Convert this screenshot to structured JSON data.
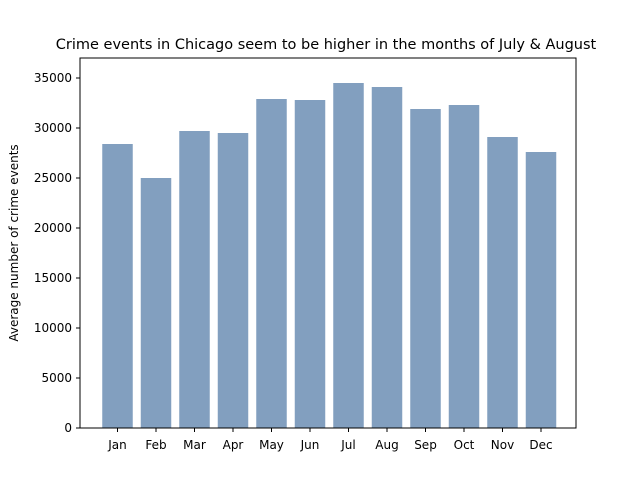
{
  "chart_data": {
    "type": "bar",
    "title": "Crime events in Chicago seem to be higher in the months of July & August",
    "xlabel": "",
    "ylabel": "Average number of crime events",
    "categories": [
      "Jan",
      "Feb",
      "Mar",
      "Apr",
      "May",
      "Jun",
      "Jul",
      "Aug",
      "Sep",
      "Oct",
      "Nov",
      "Dec"
    ],
    "values": [
      28400,
      25000,
      29700,
      29500,
      32900,
      32800,
      34500,
      34100,
      31900,
      32300,
      29100,
      27600
    ],
    "ylim": [
      0,
      37000
    ],
    "yticks": [
      0,
      5000,
      10000,
      15000,
      20000,
      25000,
      30000,
      35000
    ],
    "ytick_labels": [
      "0",
      "5000",
      "10000",
      "15000",
      "20000",
      "25000",
      "30000",
      "35000"
    ],
    "grid": false,
    "bar_color": "#829fbf"
  }
}
